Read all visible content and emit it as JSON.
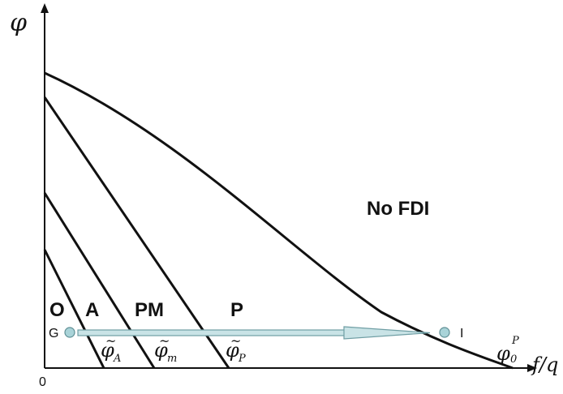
{
  "axes": {
    "y_label": "φ",
    "x_label": "f/q",
    "origin_label": "0"
  },
  "regions": {
    "o": "O",
    "a": "A",
    "pm": "PM",
    "p": "P",
    "no_fdi": "No FDI"
  },
  "thresholds": {
    "a": {
      "base": "φ",
      "sub": "A"
    },
    "m": {
      "base": "φ",
      "sub": "m"
    },
    "p": {
      "base": "φ",
      "sub": "P"
    },
    "p0": {
      "base": "φ",
      "sub": "0",
      "sup": "P"
    }
  },
  "path": {
    "start_label": "G",
    "end_label": "I"
  },
  "colors": {
    "curve": "#111111",
    "arrow_fill": "#c9e3e6",
    "arrow_stroke": "#6f9ea4",
    "dot_fill": "#a9d3d8"
  }
}
